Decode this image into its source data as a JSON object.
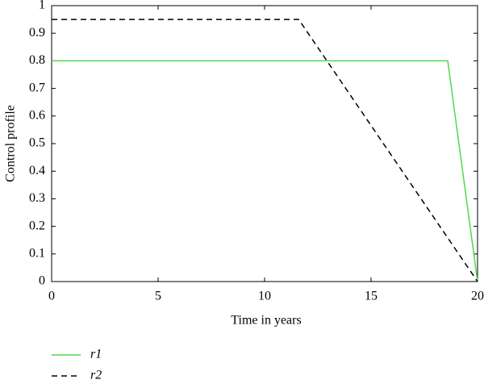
{
  "chart_data": {
    "type": "line",
    "x_label": "Time in years",
    "y_label": "Control profile",
    "xlim": [
      0,
      20
    ],
    "ylim": [
      0,
      1
    ],
    "xticks": [
      0,
      5,
      10,
      15,
      20
    ],
    "yticks": [
      0,
      0.1,
      0.2,
      0.3,
      0.4,
      0.5,
      0.6,
      0.7,
      0.8,
      0.9,
      1
    ],
    "series": [
      {
        "name": "r1",
        "color": "#4cd94c",
        "dash": "solid",
        "x": [
          0,
          18.6,
          20
        ],
        "values": [
          0.8,
          0.8,
          0
        ]
      },
      {
        "name": "r2",
        "color": "#000000",
        "dash": "dashed",
        "x": [
          0,
          11.6,
          20
        ],
        "values": [
          0.95,
          0.95,
          0
        ]
      }
    ]
  }
}
